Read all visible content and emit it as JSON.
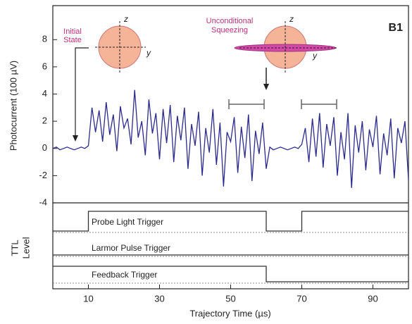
{
  "chart_data": {
    "type": "line",
    "y_label": "Photocurrent (100 µV)",
    "ttl_label": [
      "TTL",
      "Level"
    ],
    "x_label": "Trajectory Time (µs)",
    "panel": "B1",
    "annotations": {
      "initial_state": [
        "Initial",
        "State"
      ],
      "squeezing": [
        "Unconditional",
        "Squeezing"
      ],
      "sphere_axes": [
        "z",
        "y"
      ]
    },
    "color": "#2b2b8c",
    "xlim": [
      0,
      100
    ],
    "xticks": [
      10,
      30,
      50,
      70,
      90
    ],
    "ylim": [
      -4,
      10.5
    ],
    "yticks": [
      -4,
      -2,
      0,
      2,
      4,
      6,
      8
    ],
    "x": [
      0,
      1,
      2,
      3,
      4,
      5,
      6,
      7,
      8,
      9,
      10,
      11,
      12,
      13,
      14,
      15,
      16,
      17,
      18,
      19,
      20,
      21,
      22,
      23,
      24,
      25,
      26,
      27,
      28,
      29,
      30,
      31,
      32,
      33,
      34,
      35,
      36,
      37,
      38,
      39,
      40,
      41,
      42,
      43,
      44,
      45,
      46,
      47,
      48,
      49,
      50,
      51,
      52,
      53,
      54,
      55,
      56,
      57,
      58,
      59,
      60,
      61,
      62,
      63,
      64,
      65,
      66,
      67,
      68,
      69,
      70,
      71,
      72,
      73,
      74,
      75,
      76,
      77,
      78,
      79,
      80,
      81,
      82,
      83,
      84,
      85,
      86,
      87,
      88,
      89,
      90,
      91,
      92,
      93,
      94,
      95,
      96,
      97,
      98,
      99,
      100
    ],
    "values": [
      0,
      0.1,
      -0.1,
      0,
      0.1,
      0,
      -0.1,
      0,
      0.1,
      0,
      0.2,
      3.0,
      1.2,
      2.8,
      0.5,
      3.4,
      1.0,
      2.5,
      -0.2,
      3.1,
      1.5,
      2.2,
      0.3,
      4.3,
      0.8,
      2.0,
      -0.5,
      3.6,
      1.1,
      2.6,
      -0.8,
      2.9,
      0.4,
      3.2,
      -1.0,
      2.4,
      0.6,
      3.0,
      -1.5,
      1.8,
      0.2,
      2.7,
      -2.0,
      1.5,
      -0.3,
      2.9,
      -1.2,
      1.9,
      -2.8,
      1.2,
      0.5,
      2.3,
      -1.8,
      1.6,
      -0.7,
      2.5,
      -2.4,
      1.3,
      -0.4,
      1.9,
      -1.5,
      0.1,
      -0.1,
      0,
      0.1,
      0,
      -0.1,
      0,
      0.1,
      0,
      0.3,
      1.5,
      -1.0,
      2.2,
      -0.6,
      2.6,
      -1.4,
      1.8,
      0.2,
      2.3,
      -2.0,
      1.2,
      -0.8,
      2.6,
      -2.9,
      1.7,
      -0.3,
      2.0,
      -1.6,
      1.4,
      0.1,
      2.4,
      -1.9,
      1.1,
      -0.5,
      2.2,
      -2.2,
      1.5,
      0.4,
      2.0,
      -2.3
    ],
    "ttl": [
      {
        "name": "Probe Light Trigger",
        "x": [
          0,
          10,
          10,
          60,
          60,
          70,
          70,
          100
        ],
        "levels": [
          0,
          0,
          1,
          1,
          0,
          0,
          1,
          1
        ]
      },
      {
        "name": "Larmor Pulse Trigger",
        "x": [
          0,
          100
        ],
        "levels": [
          0,
          0
        ]
      },
      {
        "name": "Feedback Trigger",
        "x": [
          0,
          60,
          60,
          100
        ],
        "levels": [
          1,
          1,
          0,
          0
        ]
      }
    ]
  }
}
